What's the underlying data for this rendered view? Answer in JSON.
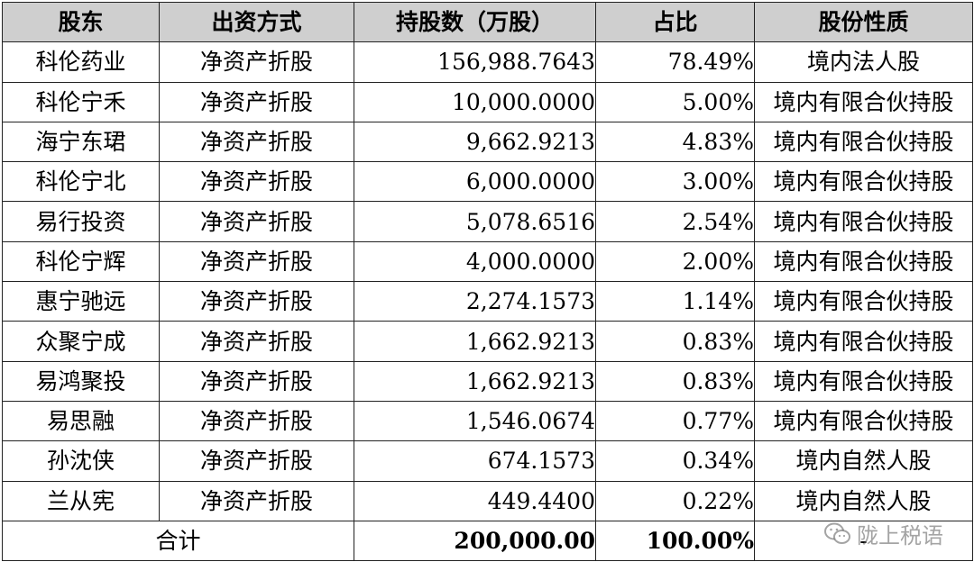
{
  "table": {
    "headers": [
      "股东",
      "出资方式",
      "持股数（万股）",
      "占比",
      "股份性质"
    ],
    "rows": [
      {
        "name": "科伦药业",
        "method": "净资产折股",
        "shares": "156,988.7643",
        "ratio": "78.49%",
        "type": "境内法人股"
      },
      {
        "name": "科伦宁禾",
        "method": "净资产折股",
        "shares": "10,000.0000",
        "ratio": "5.00%",
        "type": "境内有限合伙持股"
      },
      {
        "name": "海宁东珺",
        "method": "净资产折股",
        "shares": "9,662.9213",
        "ratio": "4.83%",
        "type": "境内有限合伙持股"
      },
      {
        "name": "科伦宁北",
        "method": "净资产折股",
        "shares": "6,000.0000",
        "ratio": "3.00%",
        "type": "境内有限合伙持股"
      },
      {
        "name": "易行投资",
        "method": "净资产折股",
        "shares": "5,078.6516",
        "ratio": "2.54%",
        "type": "境内有限合伙持股"
      },
      {
        "name": "科伦宁辉",
        "method": "净资产折股",
        "shares": "4,000.0000",
        "ratio": "2.00%",
        "type": "境内有限合伙持股"
      },
      {
        "name": "惠宁驰远",
        "method": "净资产折股",
        "shares": "2,274.1573",
        "ratio": "1.14%",
        "type": "境内有限合伙持股"
      },
      {
        "name": "众聚宁成",
        "method": "净资产折股",
        "shares": "1,662.9213",
        "ratio": "0.83%",
        "type": "境内有限合伙持股"
      },
      {
        "name": "易鸿聚投",
        "method": "净资产折股",
        "shares": "1,662.9213",
        "ratio": "0.83%",
        "type": "境内有限合伙持股"
      },
      {
        "name": "易思融",
        "method": "净资产折股",
        "shares": "1,546.0674",
        "ratio": "0.77%",
        "type": "境内有限合伙持股"
      },
      {
        "name": "孙沈侠",
        "method": "净资产折股",
        "shares": "674.1573",
        "ratio": "0.34%",
        "type": "境内自然人股"
      },
      {
        "name": "兰从宪",
        "method": "净资产折股",
        "shares": "449.4400",
        "ratio": "0.22%",
        "type": "境内自然人股"
      }
    ],
    "total": {
      "label": "合计",
      "shares": "200,000.00",
      "ratio": "100.00%",
      "type": "-"
    }
  },
  "watermark": {
    "text": "陇上税语",
    "icon": "wechat-icon"
  }
}
